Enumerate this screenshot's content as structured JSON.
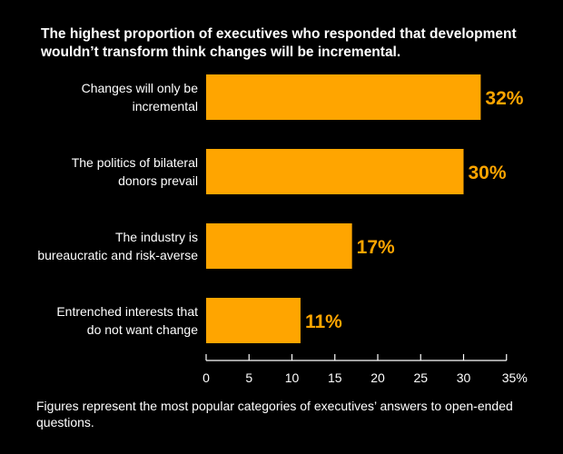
{
  "chart_data": {
    "type": "bar",
    "orientation": "horizontal",
    "title": "The highest proportion of executives who responded that development wouldn’t transform think changes will be incremental.",
    "categories": [
      [
        "Changes will only be",
        "incremental"
      ],
      [
        "The politics of bilateral",
        "donors prevail"
      ],
      [
        "The industry is",
        "bureaucratic and risk-averse"
      ],
      [
        "Entrenched interests that",
        "do not want change"
      ]
    ],
    "values": [
      32,
      30,
      17,
      11
    ],
    "value_labels": [
      "32%",
      "30%",
      "17%",
      "11%"
    ],
    "xlim": [
      0,
      35
    ],
    "xticks": [
      0,
      5,
      10,
      15,
      20,
      25,
      30,
      35
    ],
    "xtick_labels": [
      "0",
      "5",
      "10",
      "15",
      "20",
      "25",
      "30",
      "35%"
    ],
    "xlabel": "",
    "ylabel": "",
    "grid": false,
    "bar_color": "#FFA500",
    "value_label_color": "#FFA500",
    "footnote": "Figures represent the most popular categories of executives’ answers to open-ended questions."
  }
}
